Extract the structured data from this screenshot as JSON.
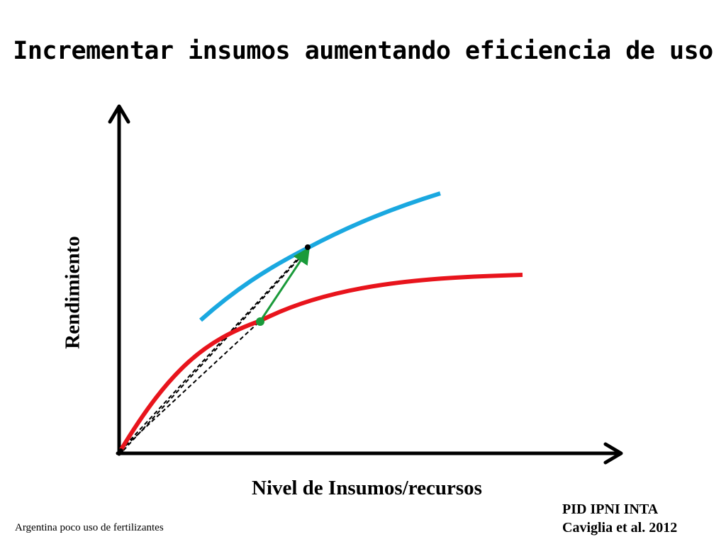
{
  "title": "Incrementar insumos aumentando eficiencia de uso",
  "diagram": {
    "y_axis_label": "Rendimiento",
    "x_axis_label": "Nivel de Insumos/recursos",
    "colors": {
      "axes": "#000000",
      "red_curve": "#e8141c",
      "blue_curve": "#1aa8e0",
      "green_arrow": "#1a9a3a",
      "dashed_lines": "#000000"
    }
  },
  "credits": {
    "line1": "PID  IPNI INTA",
    "line2": "Caviglia et al. 2012"
  },
  "footnote": "Argentina poco uso de fertilizantes"
}
